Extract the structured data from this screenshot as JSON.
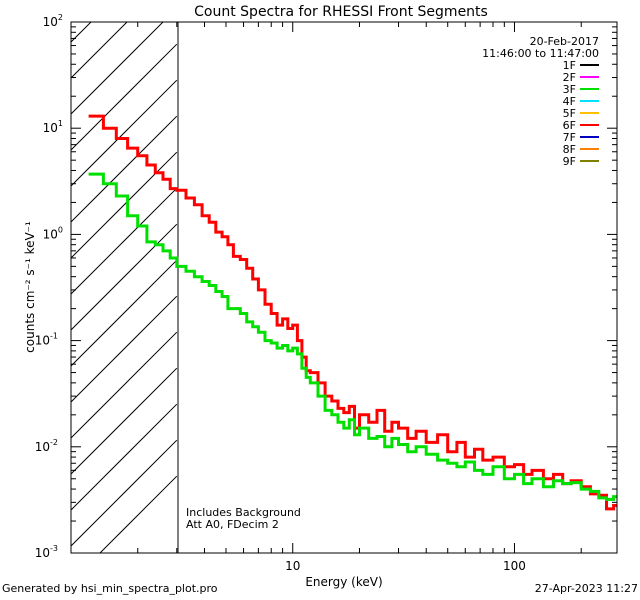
{
  "footer": {
    "generated_by": "Generated by hsi_min_spectra_plot.pro",
    "timestamp": "27-Apr-2023 11:27"
  },
  "chart_data": {
    "type": "line",
    "title": "Count Spectra for RHESSI Front Segments",
    "xlabel": "Energy (keV)",
    "ylabel": "counts cm⁻² s⁻¹ keV⁻¹",
    "xscale": "log",
    "yscale": "log",
    "xlim": [
      1,
      290
    ],
    "ylim": [
      0.001,
      100
    ],
    "x_ticks": [
      {
        "value": 10,
        "label": "10"
      },
      {
        "value": 100,
        "label": "100"
      }
    ],
    "y_ticks": [
      {
        "value": 100,
        "base": "10",
        "exp": "2"
      },
      {
        "value": 10,
        "base": "10",
        "exp": "1"
      },
      {
        "value": 1,
        "base": "10",
        "exp": "0"
      },
      {
        "value": 0.1,
        "base": "10",
        "exp": "-1"
      },
      {
        "value": 0.01,
        "base": "10",
        "exp": "-2"
      },
      {
        "value": 0.001,
        "base": "10",
        "exp": "-3"
      }
    ],
    "date": "20-Feb-2017",
    "time_range": "11:46:00 to 11:47:00",
    "legend": [
      {
        "label": "1F",
        "color": "#000000"
      },
      {
        "label": "2F",
        "color": "#ff00ff"
      },
      {
        "label": "3F",
        "color": "#00e000"
      },
      {
        "label": "4F",
        "color": "#00e0ff"
      },
      {
        "label": "5F",
        "color": "#ffc000"
      },
      {
        "label": "6F",
        "color": "#ff0000"
      },
      {
        "label": "7F",
        "color": "#0000c0"
      },
      {
        "label": "8F",
        "color": "#ff8000"
      },
      {
        "label": "9F",
        "color": "#7f7f00"
      }
    ],
    "annotations": [
      "Includes Background",
      "Att A0, FDecim 2"
    ],
    "shaded_region": {
      "x_from": 1,
      "x_to": 3
    },
    "series": [
      {
        "name": "6F",
        "color": "#ff0000",
        "points": [
          [
            1.2,
            13
          ],
          [
            1.4,
            10
          ],
          [
            1.6,
            8
          ],
          [
            1.8,
            6.5
          ],
          [
            2.0,
            5.5
          ],
          [
            2.2,
            4.5
          ],
          [
            2.4,
            3.8
          ],
          [
            2.6,
            3.3
          ],
          [
            2.8,
            2.7
          ],
          [
            3.0,
            2.6
          ],
          [
            3.3,
            2.2
          ],
          [
            3.6,
            1.9
          ],
          [
            3.9,
            1.5
          ],
          [
            4.2,
            1.3
          ],
          [
            4.5,
            1.05
          ],
          [
            4.8,
            0.95
          ],
          [
            5.1,
            0.8
          ],
          [
            5.4,
            0.62
          ],
          [
            5.8,
            0.58
          ],
          [
            6.2,
            0.48
          ],
          [
            6.6,
            0.38
          ],
          [
            7.0,
            0.3
          ],
          [
            7.5,
            0.22
          ],
          [
            8.0,
            0.18
          ],
          [
            8.5,
            0.14
          ],
          [
            9.0,
            0.16
          ],
          [
            9.5,
            0.13
          ],
          [
            10.0,
            0.14
          ],
          [
            10.5,
            0.1
          ],
          [
            11.0,
            0.07
          ],
          [
            11.5,
            0.052
          ],
          [
            12.0,
            0.05
          ],
          [
            13.0,
            0.04
          ],
          [
            14.0,
            0.03
          ],
          [
            15.0,
            0.027
          ],
          [
            16.0,
            0.023
          ],
          [
            17.0,
            0.021
          ],
          [
            18.0,
            0.024
          ],
          [
            19.0,
            0.015
          ],
          [
            20.0,
            0.02
          ],
          [
            22.0,
            0.017
          ],
          [
            24.0,
            0.022
          ],
          [
            26.0,
            0.014
          ],
          [
            28.0,
            0.017
          ],
          [
            30.0,
            0.015
          ],
          [
            33.0,
            0.012
          ],
          [
            36.0,
            0.014
          ],
          [
            40.0,
            0.011
          ],
          [
            45.0,
            0.013
          ],
          [
            50.0,
            0.009
          ],
          [
            55.0,
            0.011
          ],
          [
            60.0,
            0.008
          ],
          [
            66.0,
            0.0095
          ],
          [
            72.0,
            0.0075
          ],
          [
            80.0,
            0.008
          ],
          [
            90.0,
            0.0065
          ],
          [
            100.0,
            0.0068
          ],
          [
            110.0,
            0.0055
          ],
          [
            120.0,
            0.006
          ],
          [
            135.0,
            0.005
          ],
          [
            150.0,
            0.0055
          ],
          [
            165.0,
            0.0045
          ],
          [
            180.0,
            0.0048
          ],
          [
            200.0,
            0.0042
          ],
          [
            220.0,
            0.0036
          ],
          [
            240.0,
            0.0035
          ],
          [
            260.0,
            0.0026
          ],
          [
            280.0,
            0.0028
          ]
        ]
      },
      {
        "name": "3F",
        "color": "#00e000",
        "points": [
          [
            1.2,
            3.7
          ],
          [
            1.4,
            3.0
          ],
          [
            1.6,
            2.3
          ],
          [
            1.8,
            1.5
          ],
          [
            2.0,
            1.2
          ],
          [
            2.2,
            0.85
          ],
          [
            2.4,
            0.8
          ],
          [
            2.6,
            0.7
          ],
          [
            2.8,
            0.6
          ],
          [
            3.0,
            0.5
          ],
          [
            3.3,
            0.45
          ],
          [
            3.6,
            0.4
          ],
          [
            3.9,
            0.36
          ],
          [
            4.2,
            0.33
          ],
          [
            4.5,
            0.29
          ],
          [
            4.8,
            0.26
          ],
          [
            5.1,
            0.2
          ],
          [
            5.4,
            0.2
          ],
          [
            5.8,
            0.18
          ],
          [
            6.2,
            0.15
          ],
          [
            6.6,
            0.135
          ],
          [
            7.0,
            0.12
          ],
          [
            7.5,
            0.1
          ],
          [
            8.0,
            0.095
          ],
          [
            8.5,
            0.085
          ],
          [
            9.0,
            0.09
          ],
          [
            9.5,
            0.08
          ],
          [
            10.0,
            0.085
          ],
          [
            10.5,
            0.075
          ],
          [
            11.0,
            0.055
          ],
          [
            11.5,
            0.045
          ],
          [
            12.0,
            0.04
          ],
          [
            13.0,
            0.03
          ],
          [
            14.0,
            0.022
          ],
          [
            15.0,
            0.02
          ],
          [
            16.0,
            0.017
          ],
          [
            17.0,
            0.015
          ],
          [
            18.0,
            0.018
          ],
          [
            19.0,
            0.013
          ],
          [
            20.0,
            0.015
          ],
          [
            22.0,
            0.012
          ],
          [
            24.0,
            0.0125
          ],
          [
            26.0,
            0.01
          ],
          [
            28.0,
            0.012
          ],
          [
            30.0,
            0.0105
          ],
          [
            33.0,
            0.009
          ],
          [
            36.0,
            0.01
          ],
          [
            40.0,
            0.0085
          ],
          [
            45.0,
            0.0075
          ],
          [
            50.0,
            0.007
          ],
          [
            55.0,
            0.0065
          ],
          [
            60.0,
            0.0072
          ],
          [
            66.0,
            0.006
          ],
          [
            72.0,
            0.0055
          ],
          [
            80.0,
            0.0065
          ],
          [
            90.0,
            0.005
          ],
          [
            100.0,
            0.0055
          ],
          [
            110.0,
            0.0045
          ],
          [
            120.0,
            0.005
          ],
          [
            135.0,
            0.0042
          ],
          [
            150.0,
            0.0048
          ],
          [
            165.0,
            0.0045
          ],
          [
            180.0,
            0.0046
          ],
          [
            200.0,
            0.004
          ],
          [
            220.0,
            0.0038
          ],
          [
            240.0,
            0.0033
          ],
          [
            260.0,
            0.0032
          ],
          [
            280.0,
            0.0034
          ]
        ]
      }
    ]
  }
}
